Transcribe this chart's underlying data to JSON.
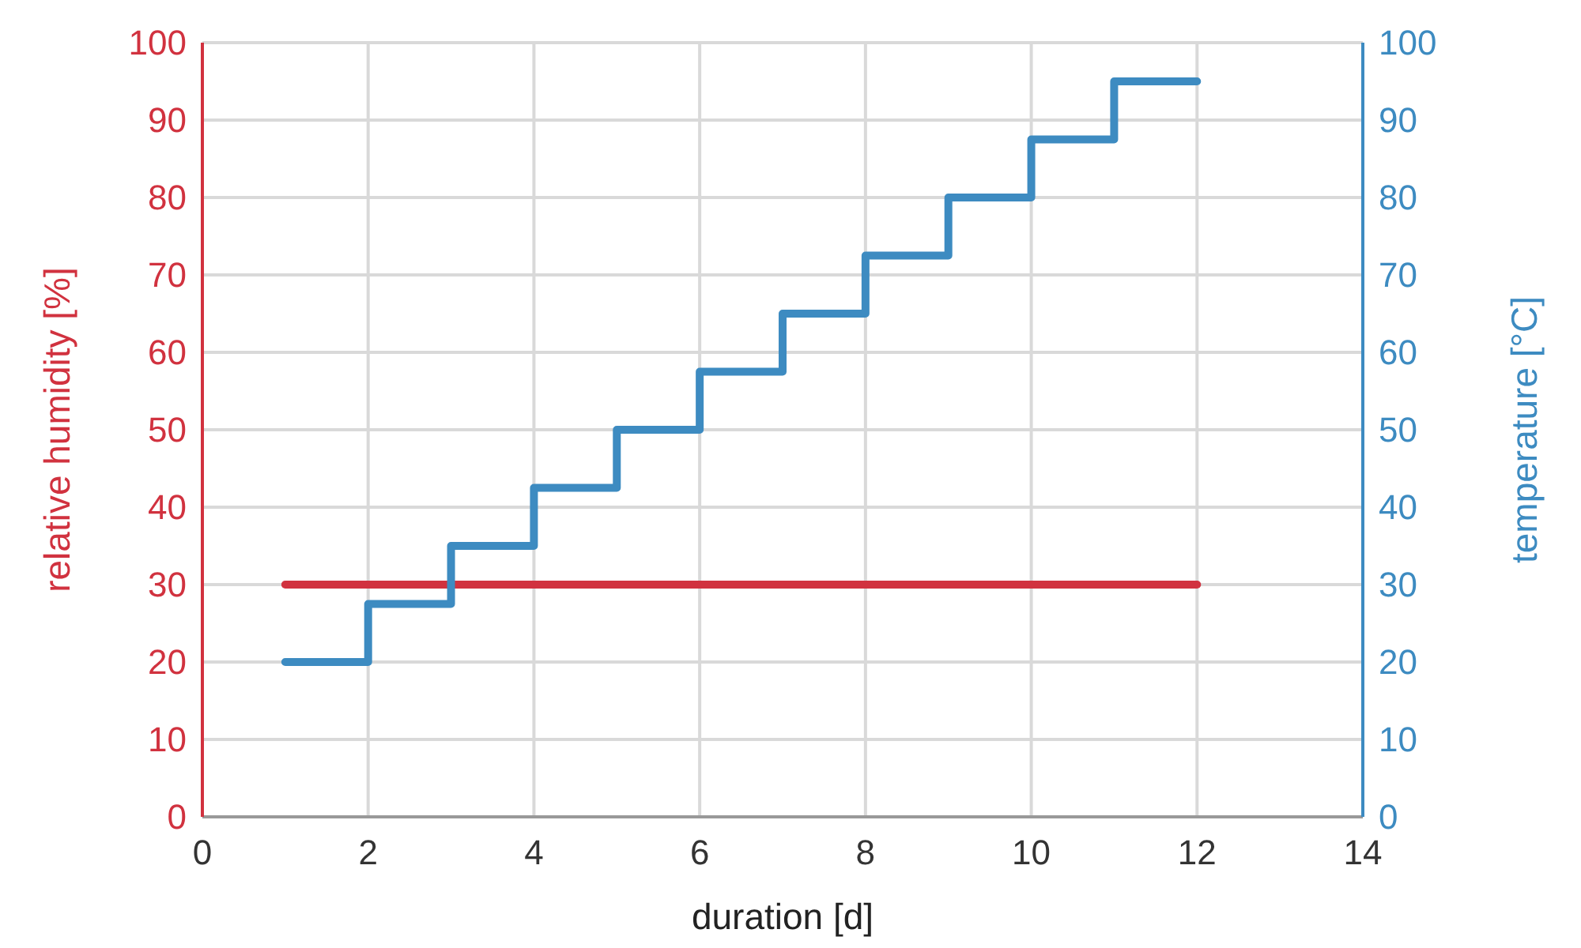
{
  "chart_data": {
    "type": "line",
    "xlabel": "duration [d]",
    "ylabel": "relative humidity [%]",
    "y2label": "temperature [°C]",
    "xlim": [
      0,
      14
    ],
    "xticks": [
      0,
      2,
      4,
      6,
      8,
      10,
      12,
      14
    ],
    "ylim": [
      0,
      100
    ],
    "yticks": [
      0,
      10,
      20,
      30,
      40,
      50,
      60,
      70,
      80,
      90,
      100
    ],
    "y2lim": [
      0,
      100
    ],
    "y2ticks": [
      0,
      10,
      20,
      30,
      40,
      50,
      60,
      70,
      80,
      90,
      100
    ],
    "grid": true,
    "series": [
      {
        "axis": "y",
        "color": "#d1323f",
        "x": [
          1,
          12
        ],
        "values": [
          30,
          30
        ]
      },
      {
        "type": "step",
        "axis": "y2",
        "color": "#3d8bc1",
        "x": [
          1,
          2,
          3,
          4,
          5,
          6,
          7,
          8,
          9,
          10,
          11,
          12
        ],
        "values": [
          20,
          27.5,
          35,
          42.5,
          50,
          57.5,
          65,
          72.5,
          80,
          87.5,
          95,
          95
        ]
      }
    ]
  }
}
